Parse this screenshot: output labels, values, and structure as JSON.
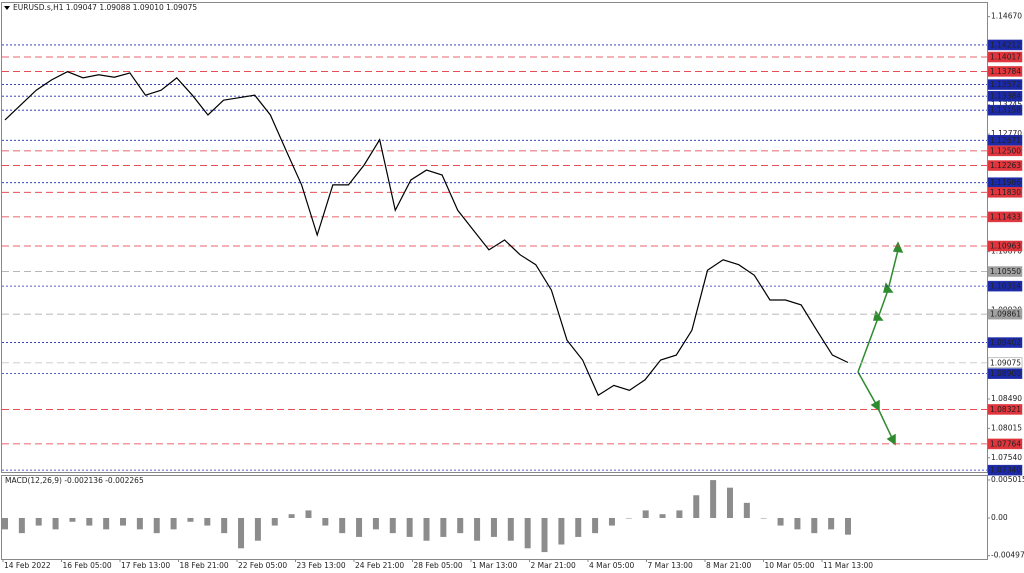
{
  "chart_data": [
    {
      "type": "line",
      "title": "EURUSD.s,H1  1.09047 1.09088 1.09010 1.09075",
      "color": "#000000",
      "values": [
        1.13,
        1.1324,
        1.1348,
        1.1365,
        1.1378,
        1.1368,
        1.1373,
        1.1369,
        1.1376,
        1.134,
        1.1348,
        1.1368,
        1.134,
        1.1308,
        1.1332,
        1.1336,
        1.134,
        1.1308,
        1.1251,
        1.1195,
        1.1114,
        1.1195,
        1.1195,
        1.1227,
        1.1268,
        1.1154,
        1.1203,
        1.1219,
        1.1211,
        1.1154,
        1.1122,
        1.109,
        1.1106,
        1.1082,
        1.1066,
        1.1025,
        1.0944,
        1.0912,
        1.0855,
        1.0871,
        1.0863,
        1.088,
        1.0912,
        1.092,
        1.096,
        1.1057,
        1.1074,
        1.1066,
        1.1049,
        1.1009,
        1.1009,
        1.1001,
        1.096,
        1.092,
        1.0908
      ],
      "ylim": [
        1.0731,
        1.1489
      ],
      "yticks": [
        {
          "value": 1.1467,
          "label": "1.14670"
        },
        {
          "value": 1.13245,
          "label": "1.13245"
        },
        {
          "value": 1.1277,
          "label": "1.12770"
        },
        {
          "value": 1.1087,
          "label": "1.10870"
        },
        {
          "value": 1.0992,
          "label": "1.09920"
        },
        {
          "value": 1.0849,
          "label": "1.08490"
        },
        1.08015,
        {
          "value": 1.0754,
          "label": "1.07540"
        }
      ],
      "levels": [
        {
          "value": 1.14212,
          "label": "1.14212",
          "color": "#1c2aa8"
        },
        {
          "value": 1.14017,
          "label": "1.14017",
          "color": "#e0353d"
        },
        {
          "value": 1.13784,
          "label": "1.13784",
          "color": "#e0353d"
        },
        {
          "value": 1.13572,
          "label": "1.13572",
          "color": "#1c2aa8"
        },
        {
          "value": 1.13384,
          "label": "1.13384",
          "color": "#1c2aa8"
        },
        {
          "value": 1.13158,
          "label": "1.13158",
          "color": "#1c2aa8"
        },
        {
          "value": 1.12671,
          "label": "1.12671",
          "color": "#1c2aa8"
        },
        {
          "value": 1.125,
          "label": "1.12500",
          "color": "#e0353d"
        },
        {
          "value": 1.12263,
          "label": "1.12263",
          "color": "#e0353d"
        },
        {
          "value": 1.11986,
          "label": "1.11986",
          "color": "#1c2aa8"
        },
        {
          "value": 1.1183,
          "label": "1.11830",
          "color": "#e0353d"
        },
        {
          "value": 1.11433,
          "label": "1.11433",
          "color": "#e0353d"
        },
        {
          "value": 1.10963,
          "label": "1.10963",
          "color": "#e0353d"
        },
        {
          "value": 1.1055,
          "label": "1.10550",
          "color": "#a0a0a0"
        },
        {
          "value": 1.10314,
          "label": "1.10314",
          "color": "#1c2aa8"
        },
        {
          "value": 1.09861,
          "label": "1.09861",
          "color": "#a0a0a0"
        },
        {
          "value": 1.09402,
          "label": "1.09402",
          "color": "#1c2aa8"
        },
        {
          "value": 1.09075,
          "label": "1.09075",
          "color": "#ffffff"
        },
        {
          "value": 1.089,
          "label": "1.08900",
          "color": "#1c2aa8"
        },
        {
          "value": 1.08321,
          "label": "1.08321",
          "color": "#e0353d"
        },
        {
          "value": 1.07764,
          "label": "1.07764",
          "color": "#e0353d"
        },
        {
          "value": 1.0734,
          "label": "1.07340",
          "color": "#1c2aa8"
        }
      ],
      "x_labels": [
        "14 Feb 2022",
        "16 Feb 05:00",
        "17 Feb 13:00",
        "18 Feb 21:00",
        "22 Feb 05:00",
        "23 Feb 13:00",
        "24 Feb 21:00",
        "28 Feb 05:00",
        "1 Mar 13:00",
        "2 Mar 21:00",
        "4 Mar 05:00",
        "7 Mar 13:00",
        "8 Mar 21:00",
        "10 Mar 05:00",
        "11 Mar 13:00"
      ]
    },
    {
      "type": "bar",
      "title": "MACD(12,26,9) -0.002136 -0.002265",
      "color": "#8c8c8c",
      "values": [
        -0.0015,
        -0.002,
        -0.001,
        -0.0015,
        -0.0005,
        -0.001,
        -0.0015,
        -0.001,
        -0.0015,
        -0.002,
        -0.0015,
        -0.0005,
        -0.001,
        -0.002,
        -0.004,
        -0.003,
        -0.001,
        0.0005,
        0.001,
        -0.001,
        -0.002,
        -0.0025,
        -0.0015,
        -0.002,
        -0.0025,
        -0.003,
        -0.0025,
        -0.002,
        -0.003,
        -0.0025,
        -0.003,
        -0.004,
        -0.0045,
        -0.0035,
        -0.0025,
        -0.002,
        -0.001,
        0,
        0.001,
        0.0005,
        0.001,
        0.003,
        0.005,
        0.004,
        0.002,
        0,
        -0.001,
        -0.0015,
        -0.002,
        -0.0015,
        -0.0022
      ],
      "ylim": [
        -0.00528,
        0.00554
      ],
      "yticks": [
        0.005015,
        {
          "value": 0,
          "label": "0.00"
        },
        -0.00497
      ]
    }
  ]
}
